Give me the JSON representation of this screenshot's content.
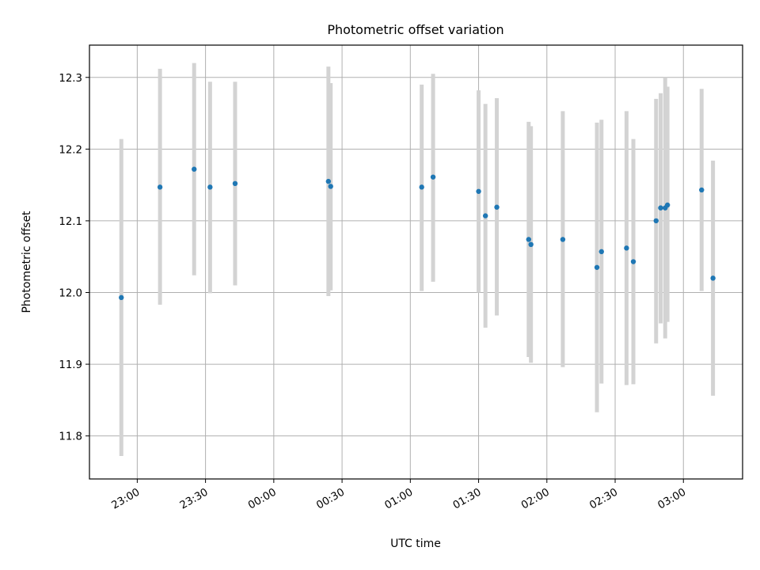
{
  "chart_data": {
    "type": "scatter",
    "title": "Photometric offset variation",
    "xlabel": "UTC time",
    "ylabel": "Photometric offset",
    "x_axis": "time (UTC), first tick 23:00 on day 0, later ticks after midnight",
    "xlim": [
      "22:39",
      "03:26"
    ],
    "ylim": [
      11.74,
      12.345
    ],
    "x_ticks": [
      "23:00",
      "23:30",
      "00:00",
      "00:30",
      "01:00",
      "01:30",
      "02:00",
      "02:30",
      "03:00"
    ],
    "y_ticks": [
      "11.8",
      "11.9",
      "12.0",
      "12.1",
      "12.2",
      "12.3"
    ],
    "grid": true,
    "colors": {
      "point": "#1f77b4",
      "errorbar": "#d3d3d3",
      "grid": "#b0b0b0"
    },
    "points": [
      {
        "t": "22:53",
        "y": 11.993,
        "lo": 11.772,
        "hi": 12.214
      },
      {
        "t": "23:10",
        "y": 12.147,
        "lo": 11.983,
        "hi": 12.312
      },
      {
        "t": "23:25",
        "y": 12.172,
        "lo": 12.024,
        "hi": 12.32
      },
      {
        "t": "23:32",
        "y": 12.147,
        "lo": 11.999,
        "hi": 12.294
      },
      {
        "t": "23:43",
        "y": 12.152,
        "lo": 12.01,
        "hi": 12.294
      },
      {
        "t": "00:24",
        "y": 12.155,
        "lo": 11.995,
        "hi": 12.315
      },
      {
        "t": "00:25",
        "y": 12.148,
        "lo": 12.003,
        "hi": 12.292
      },
      {
        "t": "01:05",
        "y": 12.147,
        "lo": 12.002,
        "hi": 12.29
      },
      {
        "t": "01:10",
        "y": 12.161,
        "lo": 12.015,
        "hi": 12.305
      },
      {
        "t": "01:30",
        "y": 12.141,
        "lo": 12.0,
        "hi": 12.282
      },
      {
        "t": "01:33",
        "y": 12.107,
        "lo": 11.951,
        "hi": 12.263
      },
      {
        "t": "01:38",
        "y": 12.119,
        "lo": 11.968,
        "hi": 12.271
      },
      {
        "t": "01:52",
        "y": 12.074,
        "lo": 11.91,
        "hi": 12.238
      },
      {
        "t": "01:53",
        "y": 12.067,
        "lo": 11.902,
        "hi": 12.232
      },
      {
        "t": "02:07",
        "y": 12.074,
        "lo": 11.896,
        "hi": 12.253
      },
      {
        "t": "02:22",
        "y": 12.035,
        "lo": 11.833,
        "hi": 12.237
      },
      {
        "t": "02:24",
        "y": 12.057,
        "lo": 11.873,
        "hi": 12.241
      },
      {
        "t": "02:35",
        "y": 12.062,
        "lo": 11.871,
        "hi": 12.253
      },
      {
        "t": "02:38",
        "y": 12.043,
        "lo": 11.872,
        "hi": 12.214
      },
      {
        "t": "02:48",
        "y": 12.1,
        "lo": 11.929,
        "hi": 12.27
      },
      {
        "t": "02:50",
        "y": 12.118,
        "lo": 11.957,
        "hi": 12.278
      },
      {
        "t": "02:52",
        "y": 12.118,
        "lo": 11.936,
        "hi": 12.3
      },
      {
        "t": "02:53",
        "y": 12.122,
        "lo": 11.959,
        "hi": 12.287
      },
      {
        "t": "03:08",
        "y": 12.143,
        "lo": 12.002,
        "hi": 12.284
      },
      {
        "t": "03:13",
        "y": 12.02,
        "lo": 11.856,
        "hi": 12.184
      }
    ]
  }
}
